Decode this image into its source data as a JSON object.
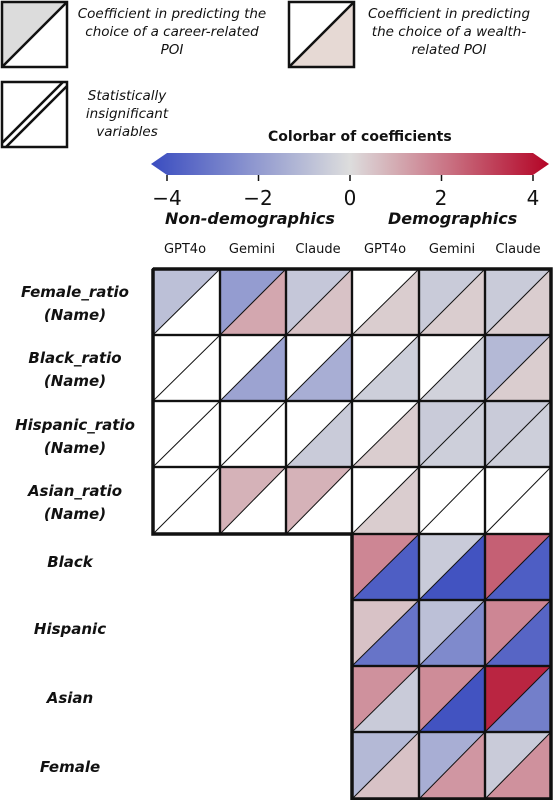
{
  "legend": {
    "career": "Coefficient in predicting the choice of a career-related POI",
    "wealth": "Coefficient in predicting the choice of a wealth-related POI",
    "insignificant": "Statistically insignificant variables"
  },
  "colorbar": {
    "title": "Colorbar of coefficients",
    "ticks": [
      "−4",
      "−2",
      "0",
      "2",
      "4"
    ],
    "min": -4,
    "max": 4,
    "low_color": "#3a4cc0",
    "mid_color": "#dddddd",
    "high_color": "#b40426"
  },
  "sections": {
    "left": "Non-demographics",
    "right": "Demographics"
  },
  "columns": [
    "GPT4o",
    "Gemini",
    "Claude",
    "GPT4o",
    "Gemini",
    "Claude"
  ],
  "rows": [
    {
      "label": "Female_ratio\n(Name)"
    },
    {
      "label": "Black_ratio\n(Name)"
    },
    {
      "label": "Hispanic_ratio\n(Name)"
    },
    {
      "label": "Asian_ratio\n(Name)"
    },
    {
      "label": "Black"
    },
    {
      "label": "Hispanic"
    },
    {
      "label": "Asian"
    },
    {
      "label": "Female"
    }
  ],
  "chart_data": {
    "type": "heatmap",
    "value_range": [
      -4,
      4
    ],
    "columns": [
      "GPT4o",
      "Gemini",
      "Claude",
      "GPT4o",
      "Gemini",
      "Claude"
    ],
    "rows": [
      "Female_ratio (Name)",
      "Black_ratio (Name)",
      "Hispanic_ratio (Name)",
      "Asian_ratio (Name)",
      "Black",
      "Hispanic",
      "Asian",
      "Female"
    ],
    "cells": [
      [
        {
          "career": -0.8,
          "wealth": null
        },
        {
          "career": -1.8,
          "wealth": 1.0
        },
        {
          "career": -0.6,
          "wealth": 0.5
        },
        {
          "career": null,
          "wealth": 0.3
        },
        {
          "career": -0.5,
          "wealth": 0.3
        },
        {
          "career": -0.5,
          "wealth": 0.3
        }
      ],
      [
        {
          "career": null,
          "wealth": null
        },
        {
          "career": null,
          "wealth": -1.6
        },
        {
          "career": null,
          "wealth": -1.3
        },
        {
          "career": null,
          "wealth": -0.4
        },
        {
          "career": null,
          "wealth": -0.3
        },
        {
          "career": -1.0,
          "wealth": 0.3
        }
      ],
      [
        {
          "career": null,
          "wealth": null
        },
        {
          "career": null,
          "wealth": null
        },
        {
          "career": null,
          "wealth": -0.5
        },
        {
          "career": null,
          "wealth": 0.3
        },
        {
          "career": -0.5,
          "wealth": -0.4
        },
        {
          "career": -0.5,
          "wealth": -0.4
        }
      ],
      [
        {
          "career": null,
          "wealth": null
        },
        {
          "career": 0.8,
          "wealth": null
        },
        {
          "career": 0.8,
          "wealth": null
        },
        {
          "career": null,
          "wealth": 0.3
        },
        {
          "career": null,
          "wealth": null
        },
        {
          "career": null,
          "wealth": null
        }
      ],
      [
        null,
        null,
        null,
        {
          "career": 1.6,
          "wealth": -3.5
        },
        {
          "career": -0.5,
          "wealth": -3.8
        },
        {
          "career": 2.3,
          "wealth": -3.5
        }
      ],
      [
        null,
        null,
        null,
        {
          "career": 0.5,
          "wealth": -2.9
        },
        {
          "career": -0.8,
          "wealth": -2.3
        },
        {
          "career": 1.6,
          "wealth": -3.3
        }
      ],
      [
        null,
        null,
        null,
        {
          "career": 1.4,
          "wealth": -0.5
        },
        {
          "career": 1.5,
          "wealth": -3.8
        },
        {
          "career": 3.4,
          "wealth": -2.6
        }
      ],
      [
        null,
        null,
        null,
        {
          "career": -1.0,
          "wealth": 0.5
        },
        {
          "career": -1.3,
          "wealth": 1.3
        },
        {
          "career": -0.5,
          "wealth": 1.4
        }
      ]
    ]
  }
}
